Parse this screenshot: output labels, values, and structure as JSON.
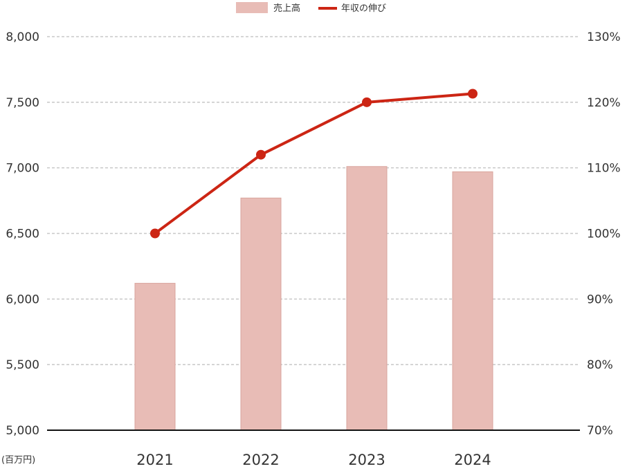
{
  "chart_data": {
    "type": "bar",
    "categories": [
      "2021",
      "2022",
      "2023",
      "2024"
    ],
    "series": [
      {
        "name": "売上高",
        "type": "bar",
        "axis": "left",
        "values": [
          6120,
          6770,
          7010,
          6970
        ],
        "color": "#e8bcb6"
      },
      {
        "name": "年収の伸び",
        "type": "line",
        "axis": "right",
        "values": [
          100,
          112,
          120,
          121.3
        ],
        "color": "#cc2514"
      }
    ],
    "y_left": {
      "ylim": [
        5000,
        8000
      ],
      "ticks": [
        "5,000",
        "5,500",
        "6,000",
        "6,500",
        "7,000",
        "7,500",
        "8,000"
      ],
      "unit": "(百万円)"
    },
    "y_right": {
      "ylim": [
        70,
        130
      ],
      "ticks": [
        "70%",
        "80%",
        "90%",
        "100%",
        "110%",
        "120%",
        "130%"
      ]
    },
    "grid": true,
    "legend": "top-center"
  }
}
